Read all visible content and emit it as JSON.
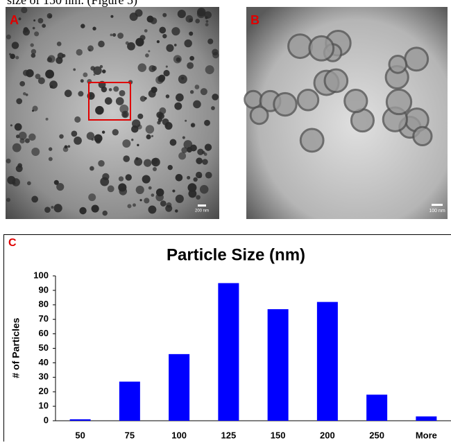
{
  "caption_fragment": "size of 150 nm. (Figure 5)",
  "panels": [
    {
      "label": "A",
      "scale_bar": "200 nm"
    },
    {
      "label": "B",
      "scale_bar": "100 nm"
    }
  ],
  "chart_data": {
    "type": "bar",
    "panel_label": "C",
    "title": "Particle Size (nm)",
    "y_label": "# of Particles",
    "categories": [
      "50",
      "75",
      "100",
      "125",
      "150",
      "200",
      "250",
      "More"
    ],
    "values": [
      1,
      27,
      46,
      95,
      77,
      82,
      18,
      3
    ],
    "color": "#0000ff",
    "ylim": [
      0,
      100
    ],
    "yticks": [
      0,
      10,
      20,
      30,
      40,
      50,
      60,
      70,
      80,
      90,
      100
    ],
    "grid": false
  }
}
